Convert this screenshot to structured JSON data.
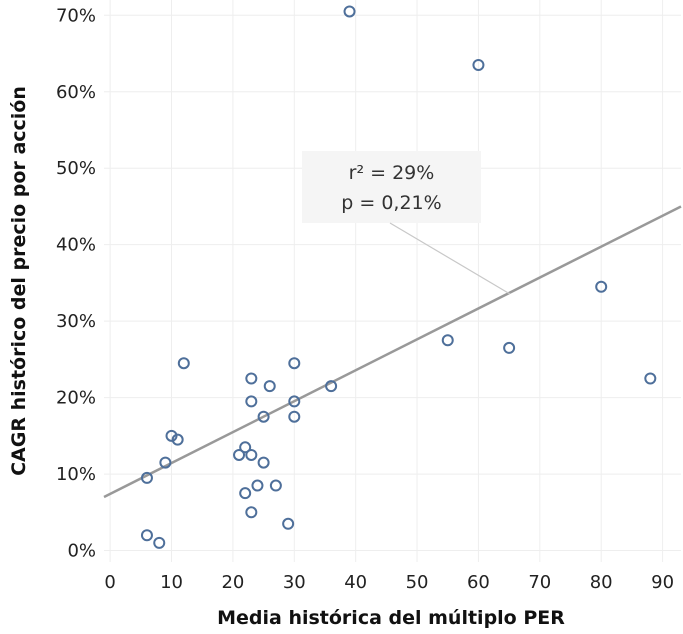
{
  "colors": {
    "point_stroke": "#4e6f9a",
    "trend_line": "#999999",
    "grid": "#eeeeee",
    "annotation_bg": "#f5f5f5",
    "annotation_leader": "#c8c8c8"
  },
  "chart_data": {
    "type": "scatter",
    "xlabel": "Media histórica del múltiplo PER",
    "ylabel": "CAGR histórico del precio por acción",
    "xlim": [
      -1,
      93
    ],
    "ylim": [
      -1.5,
      72
    ],
    "x_ticks": [
      0,
      10,
      20,
      30,
      40,
      50,
      60,
      70,
      80,
      90
    ],
    "y_ticks": [
      0,
      10,
      20,
      30,
      40,
      50,
      60,
      70
    ],
    "y_tick_labels": [
      "0%",
      "10%",
      "20%",
      "30%",
      "40%",
      "50%",
      "60%",
      "70%"
    ],
    "grid": true,
    "points": [
      {
        "x": 6,
        "y": 9.5
      },
      {
        "x": 6,
        "y": 2
      },
      {
        "x": 8,
        "y": 1
      },
      {
        "x": 9,
        "y": 11.5
      },
      {
        "x": 10,
        "y": 15
      },
      {
        "x": 11,
        "y": 14.5
      },
      {
        "x": 12,
        "y": 24.5
      },
      {
        "x": 21,
        "y": 12.5
      },
      {
        "x": 22,
        "y": 13.5
      },
      {
        "x": 22,
        "y": 7.5
      },
      {
        "x": 23,
        "y": 12.5
      },
      {
        "x": 23,
        "y": 22.5
      },
      {
        "x": 23,
        "y": 19.5
      },
      {
        "x": 23,
        "y": 5
      },
      {
        "x": 24,
        "y": 8.5
      },
      {
        "x": 25,
        "y": 17.5
      },
      {
        "x": 25,
        "y": 11.5
      },
      {
        "x": 26,
        "y": 21.5
      },
      {
        "x": 27,
        "y": 8.5
      },
      {
        "x": 29,
        "y": 3.5
      },
      {
        "x": 30,
        "y": 24.5
      },
      {
        "x": 30,
        "y": 19.5
      },
      {
        "x": 30,
        "y": 17.5
      },
      {
        "x": 36,
        "y": 21.5
      },
      {
        "x": 39,
        "y": 70.5
      },
      {
        "x": 55,
        "y": 27.5
      },
      {
        "x": 60,
        "y": 63.5
      },
      {
        "x": 65,
        "y": 26.5
      },
      {
        "x": 80,
        "y": 34.5
      },
      {
        "x": 88,
        "y": 22.5
      }
    ],
    "trendline": {
      "x": [
        -1,
        93
      ],
      "y": [
        7,
        45
      ]
    },
    "annotations": [
      "r² = 29%",
      "p = 0,21%"
    ]
  }
}
